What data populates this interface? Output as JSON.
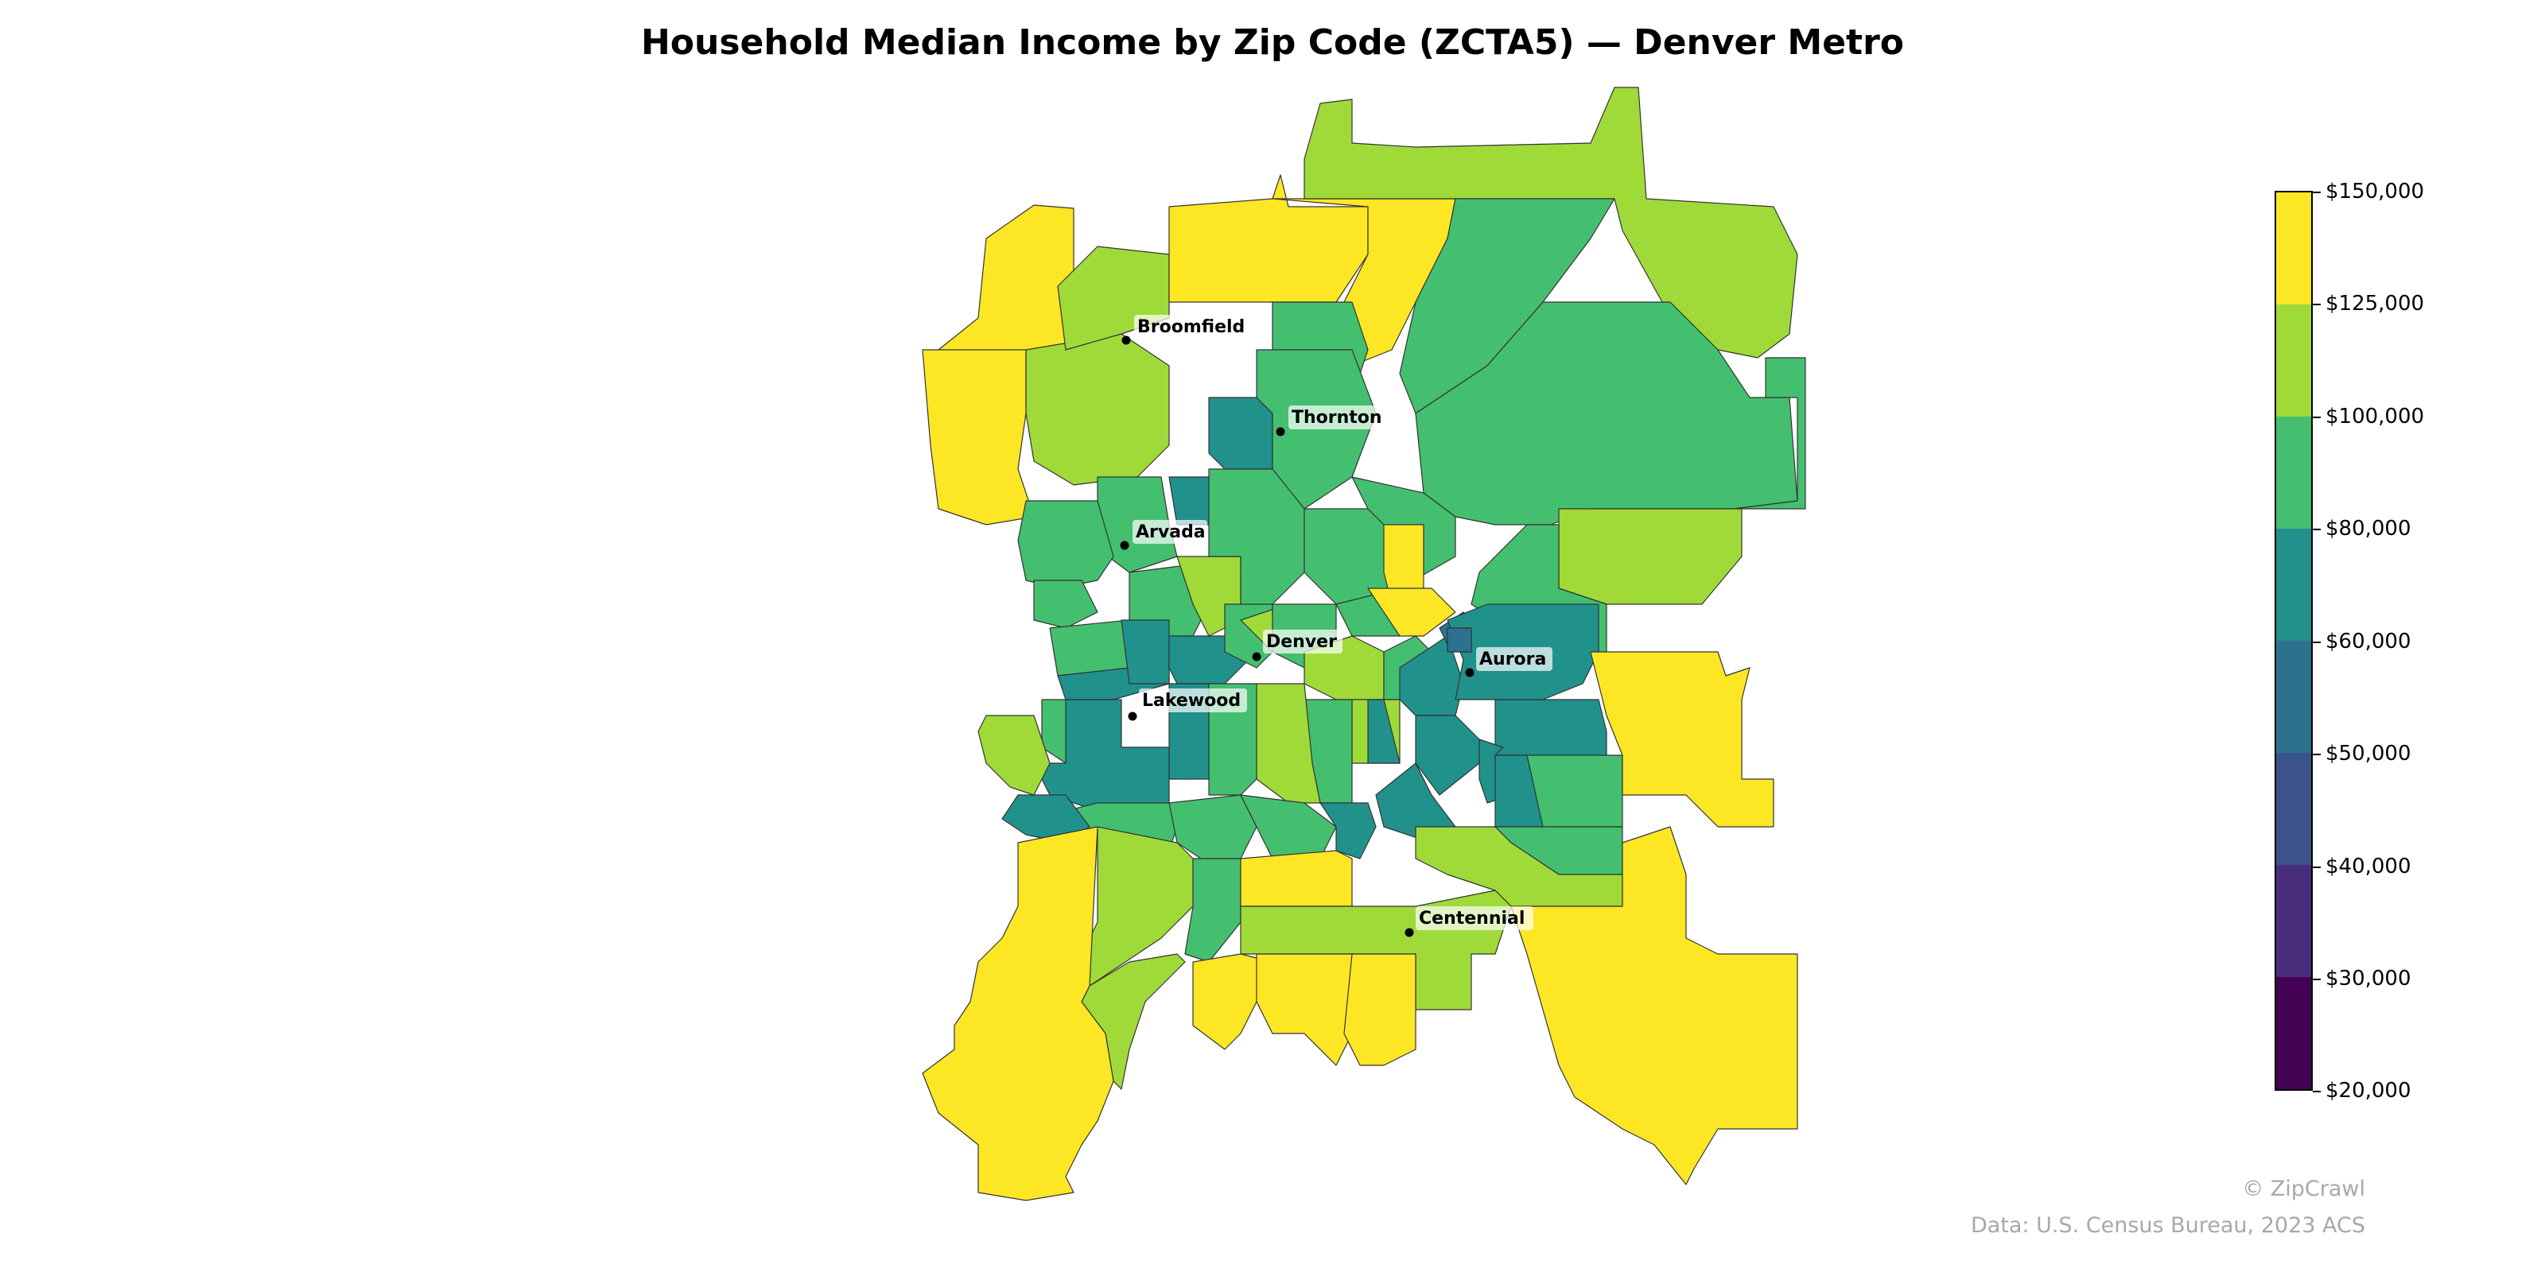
{
  "title": "Household Median Income by Zip Code (ZCTA5) — Denver Metro",
  "colors": {
    "band_20_30": "#440154",
    "band_30_40": "#472d7b",
    "band_40_50": "#3b528b",
    "band_50_60": "#2c728e",
    "band_60_80": "#21918c",
    "band_80_100": "#44bf70",
    "band_100_125": "#a0da39",
    "band_125_150": "#fde725"
  },
  "legend": {
    "ticks": [
      "$150,000",
      "$125,000",
      "$100,000",
      "$80,000",
      "$60,000",
      "$50,000",
      "$40,000",
      "$30,000",
      "$20,000"
    ]
  },
  "cities": {
    "broomfield": "Broomfield",
    "thornton": "Thornton",
    "arvada": "Arvada",
    "denver": "Denver",
    "aurora": "Aurora",
    "lakewood": "Lakewood",
    "centennial": "Centennial"
  },
  "footer": {
    "credit": "© ZipCrawl",
    "source": "Data: U.S. Census Bureau, 2023 ACS"
  }
}
